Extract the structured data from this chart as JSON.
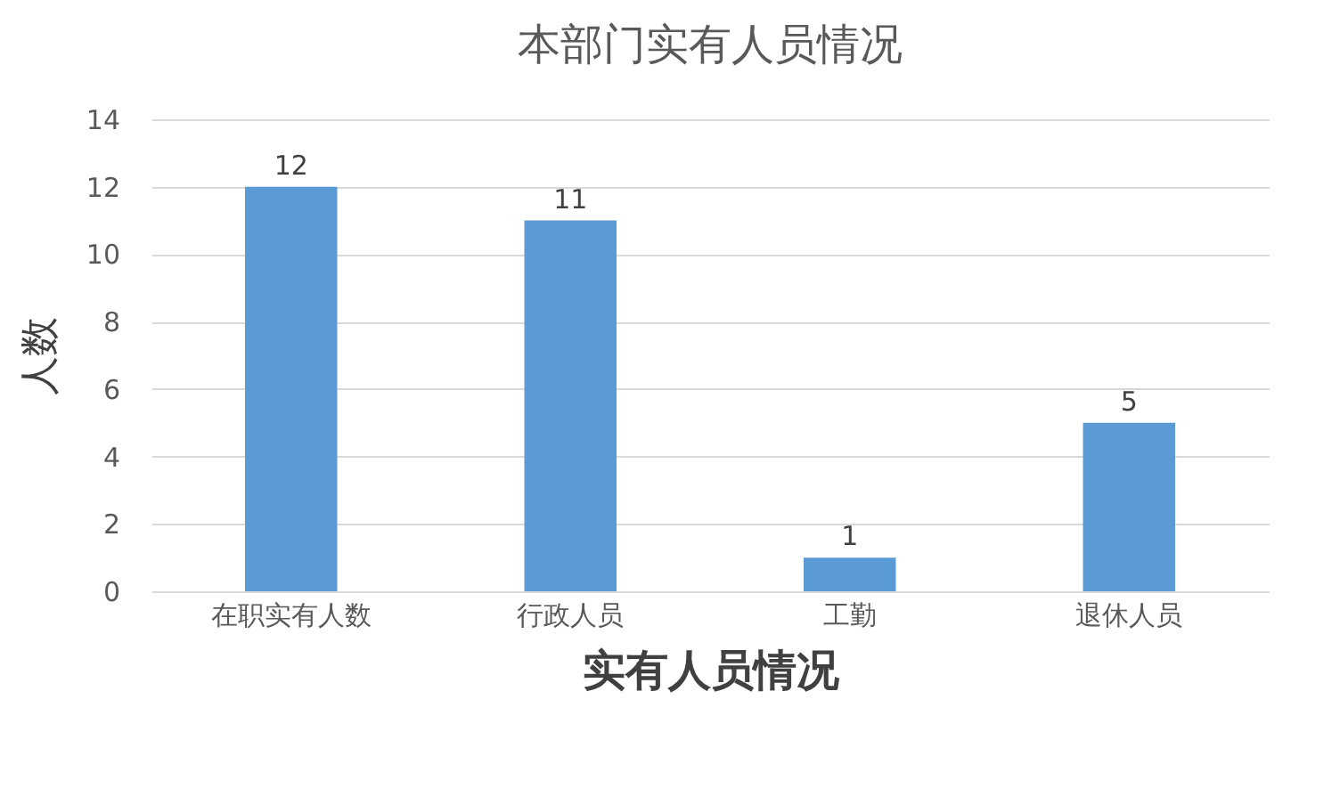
{
  "chart_data": {
    "type": "bar",
    "title": "本部门实有人员情况",
    "xlabel": "实有人员情况",
    "ylabel": "人数",
    "categories": [
      "在职实有人数",
      "行政人员",
      "工勤",
      "退休人员"
    ],
    "values": [
      12,
      11,
      1,
      5
    ],
    "color": "#5b9bd5",
    "ylim": [
      0,
      14
    ],
    "yticks": [
      0,
      2,
      4,
      6,
      8,
      10,
      12,
      14
    ],
    "grid": "y",
    "data_labels": true
  }
}
